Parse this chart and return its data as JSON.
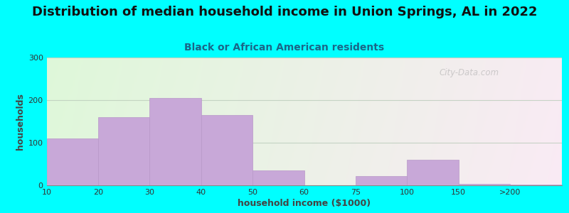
{
  "title": "Distribution of median household income in Union Springs, AL in 2022",
  "subtitle": "Black or African American residents",
  "xlabel": "household income ($1000)",
  "ylabel": "households",
  "background_outer": "#00FFFF",
  "bar_color": "#C8A8D8",
  "bar_edge_color": "#B898C8",
  "ylim": [
    0,
    300
  ],
  "yticks": [
    0,
    100,
    200,
    300
  ],
  "values": [
    110,
    160,
    205,
    165,
    35,
    0,
    22,
    60,
    3,
    2
  ],
  "bar_positions": [
    0,
    1,
    2,
    3,
    4,
    5,
    6,
    7,
    8,
    9
  ],
  "xtick_labels": [
    "10",
    "20",
    "30",
    "40",
    "50",
    "60",
    "75",
    "100",
    "150",
    ">200"
  ],
  "title_fontsize": 13,
  "subtitle_fontsize": 10,
  "axis_label_fontsize": 9,
  "watermark_text": "City-Data.com",
  "grid_color": "#BBCCBB",
  "bg_colors": [
    "#d4e8d0",
    "#e8f4e0",
    "#f4f8ee",
    "#f8faf4",
    "#fafcf8"
  ],
  "bg_right_color": "#f0f0f0"
}
